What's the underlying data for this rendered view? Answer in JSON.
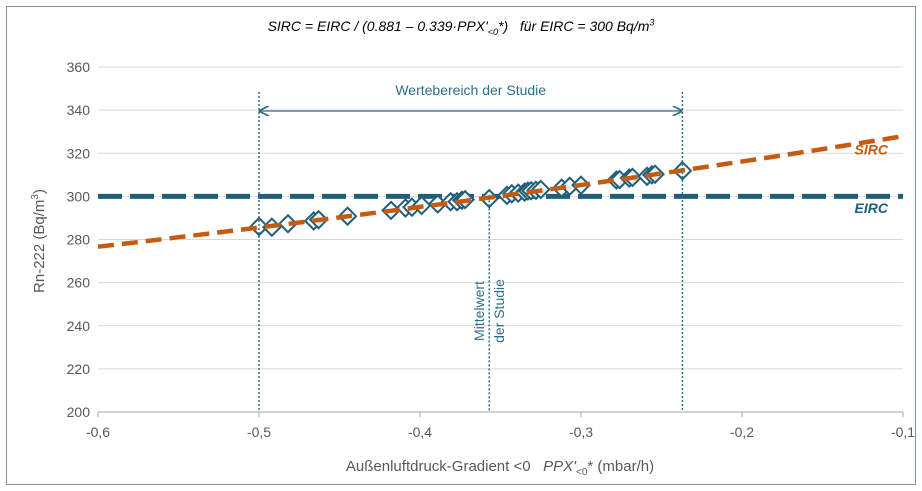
{
  "chart_data": {
    "type": "scatter",
    "title": "SIRC = EIRC / (0.881 – 0.339·PPX'<0*)   für EIRC = 300 Bq/m³",
    "xlabel": "Außenluftdruck-Gradient <0   PPX'<0* (mbar/h)",
    "ylabel": "Rn-222 (Bq/m³)",
    "xlim": [
      -0.6,
      -0.1
    ],
    "ylim": [
      200,
      360
    ],
    "x_ticks": [
      -0.6,
      -0.5,
      -0.4,
      -0.3,
      -0.2,
      -0.1
    ],
    "x_tick_labels": [
      "-0,6",
      "-0,5",
      "-0,4",
      "-0,3",
      "-0,2",
      "-0,1"
    ],
    "y_ticks": [
      200,
      220,
      240,
      260,
      280,
      300,
      320,
      340,
      360
    ],
    "y_tick_labels": [
      "200",
      "220",
      "240",
      "260",
      "280",
      "300",
      "320",
      "340",
      "360"
    ],
    "grid": "horizontal",
    "series": [
      {
        "name": "SIRC",
        "kind": "dashed-line",
        "color": "#c55a11",
        "equation": "300 / (0.881 - 0.339*x)",
        "x": [
          -0.6,
          -0.1
        ],
        "y": [
          276.1,
          327.4
        ]
      },
      {
        "name": "EIRC",
        "kind": "dashed-line",
        "color": "#1f5f7a",
        "x": [
          -0.6,
          -0.1
        ],
        "y": [
          300,
          300
        ]
      },
      {
        "name": "",
        "kind": "markers",
        "marker": "diamond-open",
        "color": "#1f5f7a",
        "points": [
          [
            -0.5,
            286.0
          ],
          [
            -0.492,
            285.7
          ],
          [
            -0.482,
            287.3
          ],
          [
            -0.466,
            288.6
          ],
          [
            -0.463,
            289.2
          ],
          [
            -0.445,
            290.8
          ],
          [
            -0.418,
            293.5
          ],
          [
            -0.409,
            294.6
          ],
          [
            -0.405,
            295.0
          ],
          [
            -0.399,
            295.8
          ],
          [
            -0.389,
            296.5
          ],
          [
            -0.381,
            297.5
          ],
          [
            -0.377,
            297.5
          ],
          [
            -0.374,
            298.2
          ],
          [
            -0.372,
            298.5
          ],
          [
            -0.357,
            299.0
          ],
          [
            -0.346,
            300.5
          ],
          [
            -0.343,
            301.2
          ],
          [
            -0.339,
            301.5
          ],
          [
            -0.335,
            302.0
          ],
          [
            -0.333,
            302.5
          ],
          [
            -0.331,
            302.6
          ],
          [
            -0.328,
            302.8
          ],
          [
            -0.325,
            303.2
          ],
          [
            -0.312,
            303.8
          ],
          [
            -0.307,
            304.7
          ],
          [
            -0.3,
            305.2
          ],
          [
            -0.278,
            307.6
          ],
          [
            -0.276,
            307.8
          ],
          [
            -0.27,
            308.5
          ],
          [
            -0.268,
            308.8
          ],
          [
            -0.259,
            309.3
          ],
          [
            -0.256,
            310.0
          ],
          [
            -0.254,
            310.3
          ],
          [
            -0.237,
            311.9
          ]
        ]
      }
    ],
    "annotations": {
      "range_label": "Wertebereich der Studie",
      "range_x": [
        -0.5,
        -0.237
      ],
      "range_y": 341,
      "mean_label_line1": "Mittelwert",
      "mean_label_line2": "der Studie",
      "mean_x": -0.357,
      "sirc_label": "SIRC",
      "eirc_label": "EIRC"
    }
  }
}
